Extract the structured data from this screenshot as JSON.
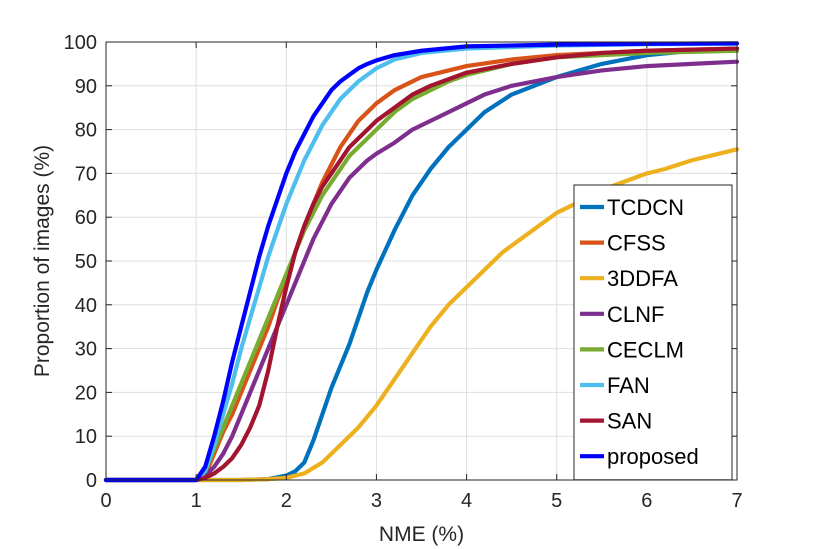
{
  "chart_data": {
    "type": "line",
    "xlabel": "NME (%)",
    "ylabel": "Proportion of images (%)",
    "xlim": [
      0,
      7
    ],
    "ylim": [
      0,
      100
    ],
    "xticks": [
      0,
      1,
      2,
      3,
      4,
      5,
      6,
      7
    ],
    "yticks": [
      0,
      10,
      20,
      30,
      40,
      50,
      60,
      70,
      80,
      90,
      100
    ],
    "grid": true,
    "legend_position": "bottom-right",
    "series": [
      {
        "name": "TCDCN",
        "color": "#0072BD",
        "points": [
          [
            0,
            0
          ],
          [
            1.5,
            0
          ],
          [
            1.8,
            0.2
          ],
          [
            2.0,
            1
          ],
          [
            2.1,
            2
          ],
          [
            2.2,
            4
          ],
          [
            2.3,
            9
          ],
          [
            2.4,
            15
          ],
          [
            2.5,
            21
          ],
          [
            2.6,
            26
          ],
          [
            2.7,
            31
          ],
          [
            2.8,
            37
          ],
          [
            2.9,
            43
          ],
          [
            3.0,
            48
          ],
          [
            3.2,
            57
          ],
          [
            3.4,
            65
          ],
          [
            3.6,
            71
          ],
          [
            3.8,
            76
          ],
          [
            4.0,
            80
          ],
          [
            4.2,
            84
          ],
          [
            4.5,
            88
          ],
          [
            5.0,
            92
          ],
          [
            5.5,
            95
          ],
          [
            6.0,
            97
          ],
          [
            6.5,
            98
          ],
          [
            7.0,
            98.5
          ]
        ]
      },
      {
        "name": "CFSS",
        "color": "#D95319",
        "points": [
          [
            0,
            0
          ],
          [
            1.0,
            0
          ],
          [
            1.1,
            1
          ],
          [
            1.2,
            6
          ],
          [
            1.3,
            11
          ],
          [
            1.4,
            15
          ],
          [
            1.5,
            20
          ],
          [
            1.6,
            25
          ],
          [
            1.7,
            30
          ],
          [
            1.8,
            35
          ],
          [
            1.9,
            41
          ],
          [
            2.0,
            46
          ],
          [
            2.1,
            52
          ],
          [
            2.2,
            58
          ],
          [
            2.3,
            63
          ],
          [
            2.4,
            68
          ],
          [
            2.5,
            72
          ],
          [
            2.6,
            76
          ],
          [
            2.7,
            79
          ],
          [
            2.8,
            82
          ],
          [
            3.0,
            86
          ],
          [
            3.2,
            89
          ],
          [
            3.5,
            92
          ],
          [
            4.0,
            94.5
          ],
          [
            4.5,
            96
          ],
          [
            5.0,
            97
          ],
          [
            5.5,
            97.5
          ],
          [
            6.0,
            98
          ],
          [
            7.0,
            98.5
          ]
        ]
      },
      {
        "name": "3DDFA",
        "color": "#EDB120",
        "points": [
          [
            0,
            0
          ],
          [
            1.5,
            0
          ],
          [
            1.8,
            0.2
          ],
          [
            2.0,
            0.5
          ],
          [
            2.2,
            1.5
          ],
          [
            2.4,
            4
          ],
          [
            2.6,
            8
          ],
          [
            2.8,
            12
          ],
          [
            3.0,
            17
          ],
          [
            3.2,
            23
          ],
          [
            3.4,
            29
          ],
          [
            3.6,
            35
          ],
          [
            3.8,
            40
          ],
          [
            4.0,
            44
          ],
          [
            4.2,
            48
          ],
          [
            4.4,
            52
          ],
          [
            4.6,
            55
          ],
          [
            4.8,
            58
          ],
          [
            5.0,
            61
          ],
          [
            5.2,
            63
          ],
          [
            5.4,
            65
          ],
          [
            5.6,
            67
          ],
          [
            5.8,
            68.5
          ],
          [
            6.0,
            70
          ],
          [
            6.2,
            71
          ],
          [
            6.5,
            73
          ],
          [
            6.8,
            74.5
          ],
          [
            7.0,
            75.5
          ]
        ]
      },
      {
        "name": "CLNF",
        "color": "#7E2F8E",
        "points": [
          [
            0,
            0
          ],
          [
            1.0,
            0
          ],
          [
            1.1,
            1
          ],
          [
            1.2,
            3
          ],
          [
            1.3,
            6
          ],
          [
            1.4,
            10
          ],
          [
            1.5,
            15
          ],
          [
            1.6,
            20
          ],
          [
            1.7,
            25
          ],
          [
            1.8,
            30
          ],
          [
            1.9,
            35
          ],
          [
            2.0,
            40
          ],
          [
            2.1,
            45
          ],
          [
            2.2,
            50
          ],
          [
            2.3,
            55
          ],
          [
            2.4,
            59
          ],
          [
            2.5,
            63
          ],
          [
            2.6,
            66
          ],
          [
            2.7,
            69
          ],
          [
            2.8,
            71
          ],
          [
            2.9,
            73
          ],
          [
            3.0,
            74.5
          ],
          [
            3.2,
            77
          ],
          [
            3.4,
            80
          ],
          [
            3.6,
            82
          ],
          [
            3.8,
            84
          ],
          [
            4.0,
            86
          ],
          [
            4.2,
            88
          ],
          [
            4.5,
            90
          ],
          [
            5.0,
            92
          ],
          [
            5.5,
            93.5
          ],
          [
            6.0,
            94.5
          ],
          [
            6.5,
            95
          ],
          [
            7.0,
            95.5
          ]
        ]
      },
      {
        "name": "CECLM",
        "color": "#77AC30",
        "points": [
          [
            0,
            0
          ],
          [
            1.0,
            0
          ],
          [
            1.1,
            2
          ],
          [
            1.2,
            7
          ],
          [
            1.3,
            12
          ],
          [
            1.4,
            17
          ],
          [
            1.5,
            22
          ],
          [
            1.6,
            27
          ],
          [
            1.7,
            32
          ],
          [
            1.8,
            37
          ],
          [
            1.9,
            42
          ],
          [
            2.0,
            47
          ],
          [
            2.1,
            52
          ],
          [
            2.2,
            57
          ],
          [
            2.3,
            61
          ],
          [
            2.4,
            65
          ],
          [
            2.5,
            68
          ],
          [
            2.6,
            71
          ],
          [
            2.7,
            74
          ],
          [
            2.8,
            76
          ],
          [
            2.9,
            78
          ],
          [
            3.0,
            80
          ],
          [
            3.2,
            84
          ],
          [
            3.4,
            87
          ],
          [
            3.6,
            89
          ],
          [
            3.8,
            91
          ],
          [
            4.0,
            92.5
          ],
          [
            4.5,
            95
          ],
          [
            5.0,
            96.5
          ],
          [
            5.5,
            97
          ],
          [
            6.0,
            97.5
          ],
          [
            7.0,
            98
          ]
        ]
      },
      {
        "name": "FAN",
        "color": "#4DBEEE",
        "points": [
          [
            0,
            0
          ],
          [
            1.0,
            0
          ],
          [
            1.1,
            2
          ],
          [
            1.2,
            8
          ],
          [
            1.3,
            15
          ],
          [
            1.4,
            22
          ],
          [
            1.5,
            30
          ],
          [
            1.6,
            37
          ],
          [
            1.7,
            44
          ],
          [
            1.8,
            51
          ],
          [
            1.9,
            57
          ],
          [
            2.0,
            63
          ],
          [
            2.1,
            68
          ],
          [
            2.2,
            73
          ],
          [
            2.3,
            77
          ],
          [
            2.4,
            81
          ],
          [
            2.5,
            84
          ],
          [
            2.6,
            87
          ],
          [
            2.7,
            89
          ],
          [
            2.8,
            91
          ],
          [
            2.9,
            92.5
          ],
          [
            3.0,
            94
          ],
          [
            3.2,
            96
          ],
          [
            3.5,
            97.5
          ],
          [
            4.0,
            98.5
          ],
          [
            5.0,
            99.2
          ],
          [
            6.0,
            99.5
          ],
          [
            7.0,
            99.6
          ]
        ]
      },
      {
        "name": "SAN",
        "color": "#A2142F",
        "points": [
          [
            0,
            0
          ],
          [
            1.0,
            0
          ],
          [
            1.1,
            0.5
          ],
          [
            1.2,
            1.5
          ],
          [
            1.3,
            3
          ],
          [
            1.4,
            5
          ],
          [
            1.5,
            8
          ],
          [
            1.6,
            12
          ],
          [
            1.7,
            17
          ],
          [
            1.8,
            25
          ],
          [
            1.9,
            35
          ],
          [
            2.0,
            44
          ],
          [
            2.1,
            52
          ],
          [
            2.2,
            58
          ],
          [
            2.3,
            63
          ],
          [
            2.4,
            67
          ],
          [
            2.5,
            70
          ],
          [
            2.6,
            73
          ],
          [
            2.7,
            76
          ],
          [
            2.8,
            78
          ],
          [
            2.9,
            80
          ],
          [
            3.0,
            82
          ],
          [
            3.2,
            85
          ],
          [
            3.4,
            88
          ],
          [
            3.6,
            90
          ],
          [
            3.8,
            91.5
          ],
          [
            4.0,
            93
          ],
          [
            4.5,
            95
          ],
          [
            5.0,
            96.5
          ],
          [
            5.5,
            97.5
          ],
          [
            6.0,
            98
          ],
          [
            7.0,
            98.5
          ]
        ]
      },
      {
        "name": "proposed",
        "color": "#0000FF",
        "points": [
          [
            0,
            0
          ],
          [
            1.0,
            0
          ],
          [
            1.1,
            3
          ],
          [
            1.2,
            10
          ],
          [
            1.3,
            18
          ],
          [
            1.4,
            27
          ],
          [
            1.5,
            35
          ],
          [
            1.6,
            43
          ],
          [
            1.7,
            51
          ],
          [
            1.8,
            58
          ],
          [
            1.9,
            64
          ],
          [
            2.0,
            70
          ],
          [
            2.1,
            75
          ],
          [
            2.2,
            79
          ],
          [
            2.3,
            83
          ],
          [
            2.4,
            86
          ],
          [
            2.5,
            89
          ],
          [
            2.6,
            91
          ],
          [
            2.7,
            92.5
          ],
          [
            2.8,
            94
          ],
          [
            2.9,
            95
          ],
          [
            3.0,
            95.8
          ],
          [
            3.2,
            97
          ],
          [
            3.5,
            98
          ],
          [
            4.0,
            99
          ],
          [
            5.0,
            99.4
          ],
          [
            6.0,
            99.6
          ],
          [
            7.0,
            99.7
          ]
        ]
      }
    ]
  }
}
